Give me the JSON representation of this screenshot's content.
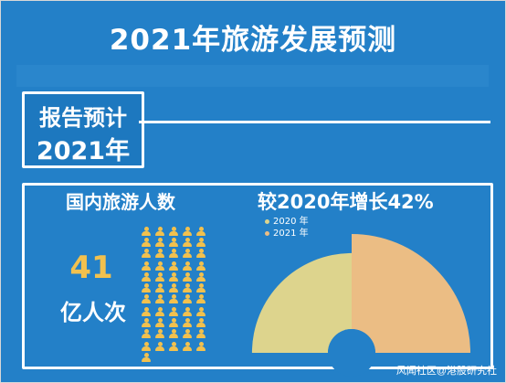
{
  "title": "2021年旅游发展预测",
  "report": {
    "line1": "报告预计",
    "line2": "2021年"
  },
  "domestic": {
    "label": "国内旅游人数",
    "number": "41",
    "unit": "亿人次"
  },
  "growth": {
    "label": "较2020年增长42%"
  },
  "watermark": "风闻社区@港股研究社",
  "colors": {
    "background": "#2380c8",
    "series_2020": "#ddd48d",
    "series_2021": "#ebbd84",
    "accent": "#f2c14e"
  },
  "icons": {
    "person": "person-icon"
  },
  "chart_data": {
    "type": "pie",
    "subtype": "half-donut",
    "legend_position": "top-left",
    "series": [
      {
        "name": "2020 年",
        "label": "2020 年",
        "value": 1.0,
        "color": "#ddd48d"
      },
      {
        "name": "2021 年",
        "label": "2021 年",
        "value": 1.42,
        "color": "#ebbd84"
      }
    ]
  }
}
